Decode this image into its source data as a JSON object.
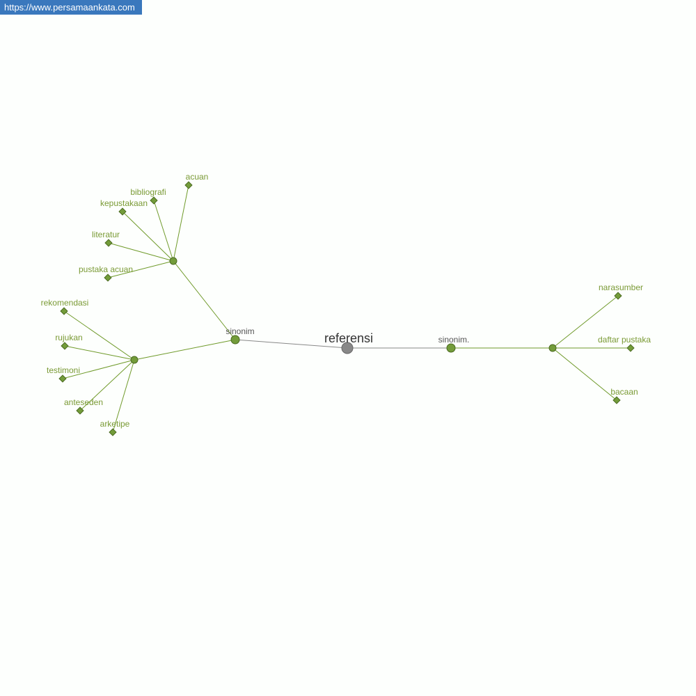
{
  "site_url": "https://www.persamaankata.com",
  "graph": {
    "root": "referensi",
    "colors": {
      "edge_green": "#6f9a2a",
      "edge_grey": "#888888",
      "node_green": "#739c3a",
      "node_grey": "#888888",
      "label_green": "#7a9a35"
    },
    "branches": [
      {
        "label": "sinonim",
        "groups": [
          [
            "acuan",
            "bibliografi",
            "kepustakaan",
            "literatur",
            "pustaka acuan"
          ],
          [
            "rekomendasi",
            "rujukan",
            "testimoni",
            "anteseden",
            "arketipe"
          ]
        ]
      },
      {
        "label": "sinonim.",
        "groups": [
          [
            "narasumber",
            "daftar pustaka",
            "bacaan"
          ]
        ]
      }
    ]
  }
}
